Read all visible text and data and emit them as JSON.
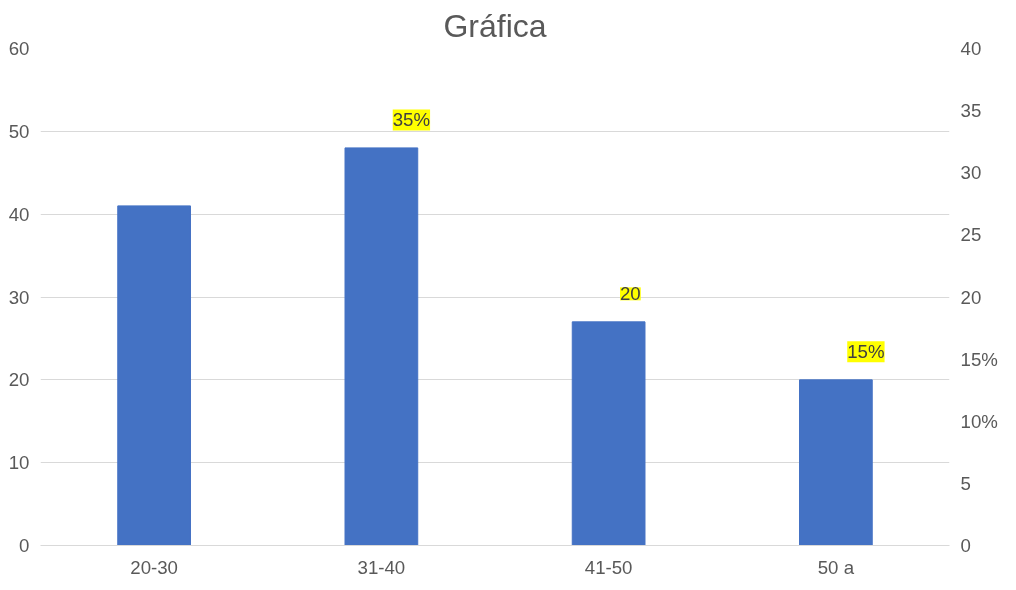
{
  "chart_data": {
    "type": "bar",
    "title": "Gráfica",
    "categories": [
      "20-30",
      "31-40",
      "41-50",
      "50 a"
    ],
    "values": [
      41,
      48,
      27,
      20
    ],
    "color": "#4472c4",
    "ylim": [
      0,
      60
    ],
    "yticks": [
      0,
      10,
      20,
      30,
      40,
      50,
      60
    ],
    "y2lim": [
      0,
      40
    ],
    "y2ticks": [
      0,
      5,
      {
        "value": 10,
        "label": "10%"
      },
      {
        "value": 15,
        "label": "15%"
      },
      20,
      25,
      30,
      35,
      40
    ],
    "grid": "y",
    "annotations": [
      "35%",
      "20",
      "15%"
    ]
  }
}
